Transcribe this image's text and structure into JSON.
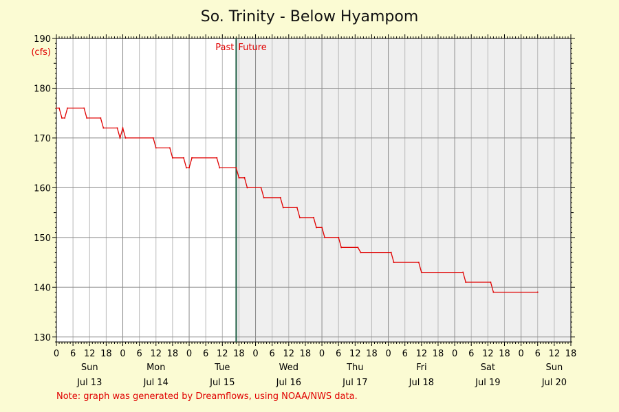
{
  "title": "So. Trinity - Below Hyampom",
  "note": "Note: graph was generated by Dreamflows, using NOAA/NWS data.",
  "chart_data": {
    "type": "line",
    "title": "So. Trinity - Below Hyampom",
    "y_unit": "(cfs)",
    "ylim": [
      129,
      190
    ],
    "y_ticks": [
      130,
      140,
      150,
      160,
      170,
      180,
      190
    ],
    "x_hours_start": 0,
    "x_hours_end": 186,
    "x_tick_labels": [
      "0",
      "6",
      "12",
      "18",
      "0",
      "6",
      "12",
      "18",
      "0",
      "6",
      "12",
      "18",
      "0",
      "6",
      "12",
      "18",
      "0",
      "6",
      "12",
      "18",
      "0",
      "6",
      "12",
      "18",
      "0",
      "6",
      "12",
      "18",
      "0",
      "6",
      "12",
      "18"
    ],
    "days": [
      {
        "name": "Sun",
        "date": "Jul 13"
      },
      {
        "name": "Mon",
        "date": "Jul 14"
      },
      {
        "name": "Tue",
        "date": "Jul 15"
      },
      {
        "name": "Wed",
        "date": "Jul 16"
      },
      {
        "name": "Thu",
        "date": "Jul 17"
      },
      {
        "name": "Fri",
        "date": "Jul 18"
      },
      {
        "name": "Sat",
        "date": "Jul 19"
      },
      {
        "name": "Sun",
        "date": "Jul 20"
      }
    ],
    "past_label": "Past",
    "future_label": "Future",
    "past_future_hour": 65,
    "line_color": "#e00000",
    "future_bg": "#efefef",
    "grid": true,
    "series": [
      {
        "values": [
          [
            0,
            176
          ],
          [
            1,
            176
          ],
          [
            2,
            174
          ],
          [
            3,
            174
          ],
          [
            4,
            176
          ],
          [
            10,
            176
          ],
          [
            11,
            174
          ],
          [
            16,
            174
          ],
          [
            17,
            172
          ],
          [
            22,
            172
          ],
          [
            23,
            170
          ],
          [
            24,
            172
          ],
          [
            25,
            170
          ],
          [
            35,
            170
          ],
          [
            36,
            168
          ],
          [
            41,
            168
          ],
          [
            42,
            166
          ],
          [
            46,
            166
          ],
          [
            47,
            164
          ],
          [
            48,
            164
          ],
          [
            49,
            166
          ],
          [
            58,
            166
          ],
          [
            59,
            164
          ],
          [
            65,
            164
          ],
          [
            66,
            162
          ],
          [
            68,
            162
          ],
          [
            69,
            160
          ],
          [
            74,
            160
          ],
          [
            75,
            158
          ],
          [
            81,
            158
          ],
          [
            82,
            156
          ],
          [
            87,
            156
          ],
          [
            88,
            154
          ],
          [
            93,
            154
          ],
          [
            94,
            152
          ],
          [
            96,
            152
          ],
          [
            97,
            150
          ],
          [
            102,
            150
          ],
          [
            103,
            148
          ],
          [
            109,
            148
          ],
          [
            110,
            147
          ],
          [
            121,
            147
          ],
          [
            122,
            145
          ],
          [
            131,
            145
          ],
          [
            132,
            143
          ],
          [
            147,
            143
          ],
          [
            148,
            141
          ],
          [
            157,
            141
          ],
          [
            158,
            139
          ],
          [
            174,
            139
          ]
        ]
      }
    ]
  }
}
